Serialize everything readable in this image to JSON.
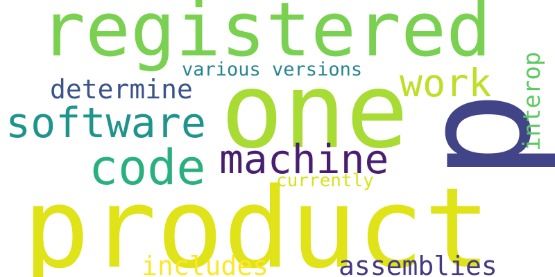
{
  "words": {
    "registered": {
      "text": "registered",
      "color": "#7ad151"
    },
    "one": {
      "text": "one",
      "color": "#a8db34"
    },
    "product": {
      "text": "product",
      "color": "#dfe318"
    },
    "p": {
      "text": "p",
      "color": "#414487"
    },
    "software": {
      "text": "software",
      "color": "#1f948c"
    },
    "machine": {
      "text": "machine",
      "color": "#481f70"
    },
    "code": {
      "text": "code",
      "color": "#2ab07f"
    },
    "work": {
      "text": "work",
      "color": "#bddf26"
    },
    "determine": {
      "text": "determine",
      "color": "#3b528b"
    },
    "various_versions": {
      "text": "various versions",
      "color": "#25858e"
    },
    "interop": {
      "text": "interop",
      "color": "#5ec962"
    },
    "currently": {
      "text": "currently",
      "color": "#d8e219"
    },
    "includes": {
      "text": "includes",
      "color": "#fde725"
    },
    "assemblies": {
      "text": "assemblies",
      "color": "#443983"
    }
  }
}
